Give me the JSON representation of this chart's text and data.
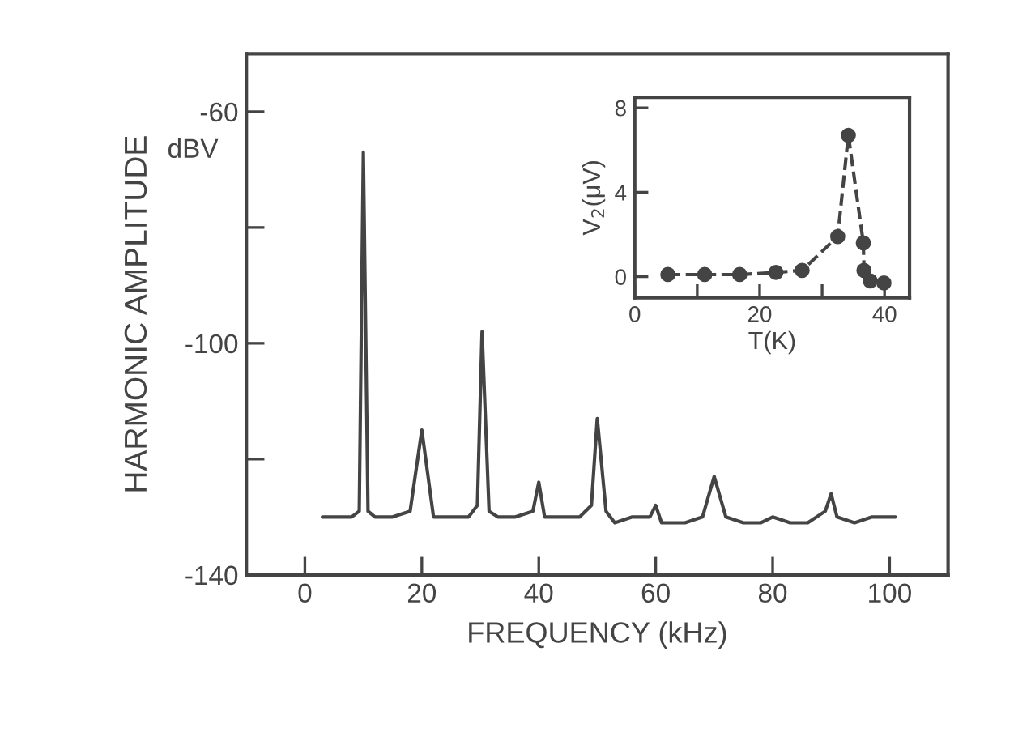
{
  "chart_data": [
    {
      "type": "line",
      "xlabel": "FREQUENCY (kHz)",
      "ylabel": "HARMONIC AMPLITUDE",
      "annotations": [
        "dBV"
      ],
      "x": [
        3,
        8,
        9.3,
        10,
        10.8,
        12,
        15,
        18,
        20,
        22,
        25,
        28,
        29.5,
        30.3,
        31.5,
        33,
        36,
        39,
        40,
        41,
        44,
        47,
        49,
        50,
        51.5,
        53,
        56,
        59,
        60,
        61,
        65,
        68,
        70,
        72,
        75,
        78,
        80,
        83,
        86,
        89,
        90,
        91,
        94,
        97,
        99,
        101
      ],
      "series": [
        {
          "color": "#444444",
          "values": [
            -130,
            -130,
            -129,
            -67,
            -129,
            -130,
            -130,
            -129,
            -115,
            -130,
            -130,
            -130,
            -128,
            -98,
            -129,
            -130,
            -130,
            -129,
            -124,
            -130,
            -130,
            -130,
            -128,
            -113,
            -129,
            -131,
            -130,
            -130,
            -128,
            -131,
            -131,
            -130,
            -123,
            -130,
            -131,
            -131,
            -130,
            -131,
            -131,
            -129,
            -126,
            -130,
            -131,
            -130,
            -130,
            -130
          ]
        }
      ],
      "xlim": [
        -10,
        110
      ],
      "ylim": [
        -140,
        -50
      ],
      "xticks": [
        0,
        20,
        40,
        60,
        80,
        100
      ],
      "yticks": [
        {
          "value": -60,
          "label": "-60"
        },
        {
          "value": -80,
          "label": null
        },
        {
          "value": -100,
          "label": "-100"
        },
        {
          "value": -120,
          "label": null
        },
        {
          "value": -140,
          "label": "-140"
        }
      ],
      "grid": false,
      "legend": false,
      "marker": "none",
      "line_style": "solid"
    },
    {
      "type": "line",
      "xlabel": "T(K)",
      "ylabel": "V$_{2}$(μV)",
      "x": [
        5.3,
        11.2,
        16.8,
        22.6,
        26.8,
        32.5,
        34.2,
        36.6,
        36.7,
        37.7,
        39.9
      ],
      "series": [
        {
          "color": "#444444",
          "values": [
            0.1,
            0.1,
            0.1,
            0.2,
            0.3,
            1.9,
            6.7,
            1.6,
            0.3,
            -0.2,
            -0.3
          ]
        }
      ],
      "xlim": [
        0,
        44
      ],
      "ylim": [
        -1,
        8.5
      ],
      "xticks": [
        0,
        {
          "value": 10,
          "label": null
        },
        20,
        {
          "value": 30,
          "label": null
        },
        40
      ],
      "yticks": [
        0,
        4,
        8
      ],
      "grid": false,
      "legend": false,
      "marker": "circle",
      "line_style": "dashed"
    }
  ]
}
